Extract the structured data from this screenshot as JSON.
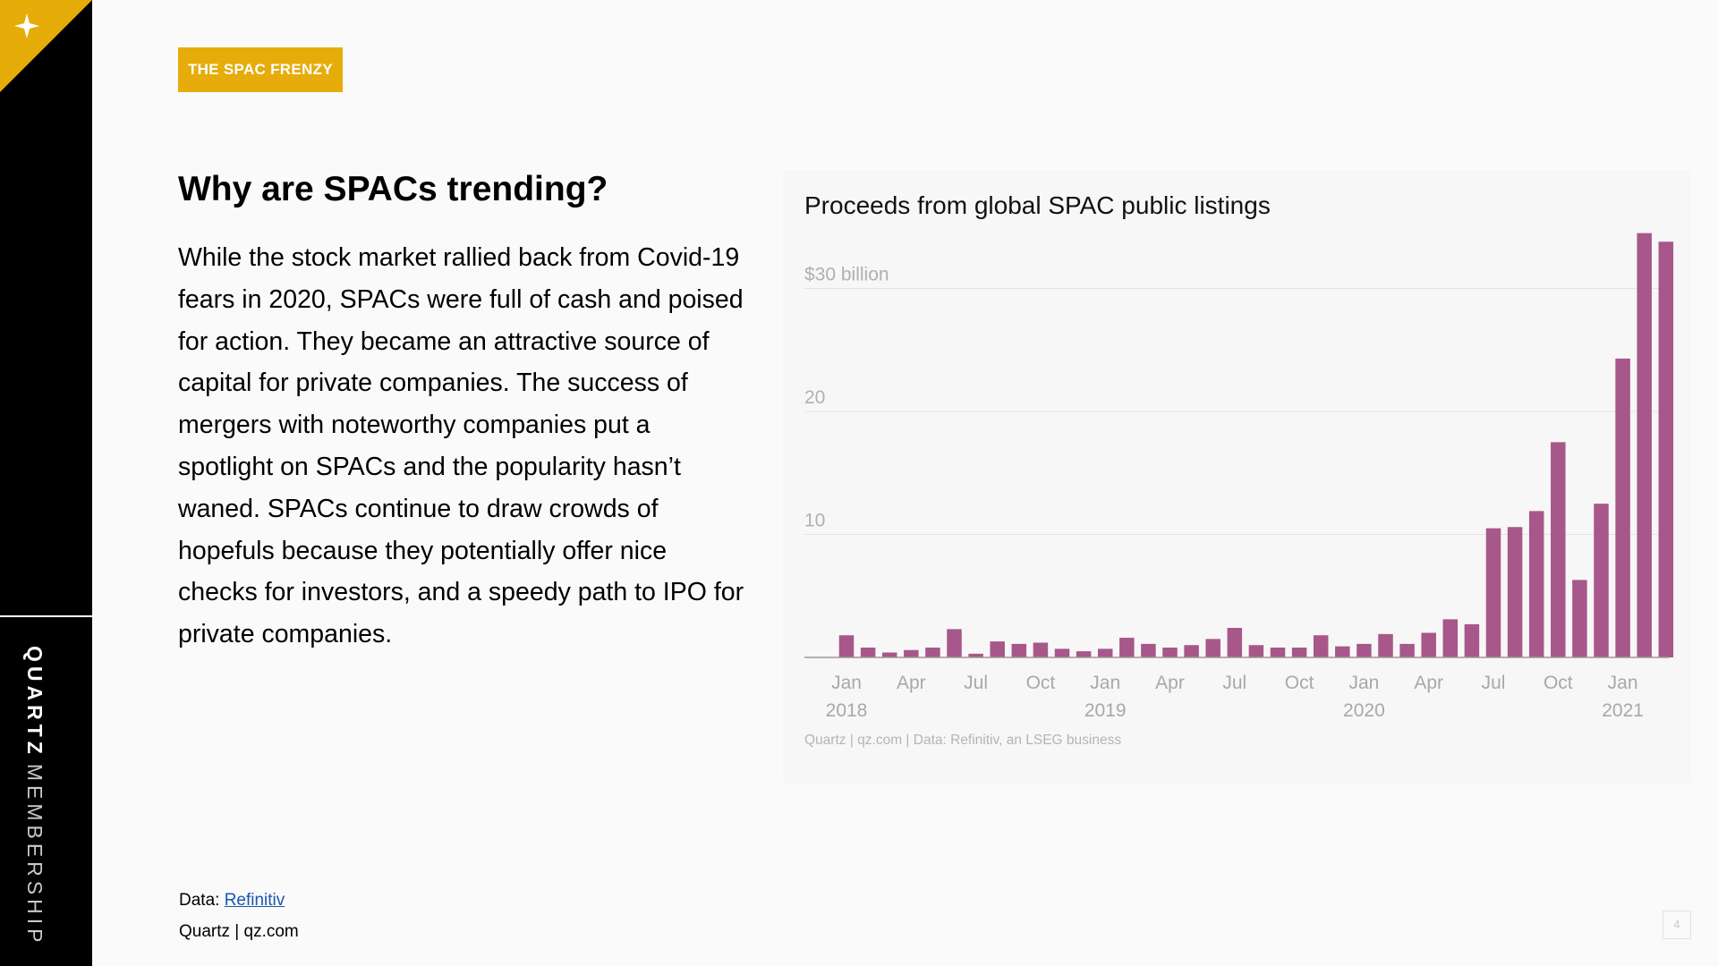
{
  "sidebar": {
    "brand_bold": "QUARTZ",
    "brand_light": "MEMBERSHIP"
  },
  "tag": "THE SPAC FRENZY",
  "headline": "Why are SPACs trending?",
  "body": "While the stock market rallied back from Covid-19 fears in 2020, SPACs were full of cash and poised for action. They became an attractive source of capital for private companies. The success of mergers with noteworthy companies put a spotlight on SPACs and the popularity hasn’t waned. SPACs continue to draw crowds of hopefuls because they potentially offer nice checks for investors, and a speedy path to IPO for private companies.",
  "footer": {
    "source_prefix": "Data: ",
    "source_link": "Refinitiv",
    "credit": "Quartz | qz.com"
  },
  "page_number": "4",
  "colors": {
    "accent": "#e6ac0a",
    "bar": "#a8578a",
    "sidebar": "#000000"
  },
  "chart_data": {
    "type": "bar",
    "title": "Proceeds from global SPAC public listings",
    "source": "Quartz | qz.com | Data: Refinitiv, an LSEG business",
    "ylabel": "",
    "ylim": [
      0,
      30
    ],
    "yticks": [
      {
        "value": 10,
        "label": "10"
      },
      {
        "value": 20,
        "label": "20"
      },
      {
        "value": 30,
        "label": "$30 billion"
      }
    ],
    "x": [
      "2018-01",
      "2018-02",
      "2018-03",
      "2018-04",
      "2018-05",
      "2018-06",
      "2018-07",
      "2018-08",
      "2018-09",
      "2018-10",
      "2018-11",
      "2018-12",
      "2019-01",
      "2019-02",
      "2019-03",
      "2019-04",
      "2019-05",
      "2019-06",
      "2019-07",
      "2019-08",
      "2019-09",
      "2019-10",
      "2019-11",
      "2019-12",
      "2020-01",
      "2020-02",
      "2020-03",
      "2020-04",
      "2020-05",
      "2020-06",
      "2020-07",
      "2020-08",
      "2020-09",
      "2020-10",
      "2020-11",
      "2020-12",
      "2021-01",
      "2021-02",
      "2021-03"
    ],
    "values": [
      1.8,
      0.8,
      0.4,
      0.6,
      0.8,
      2.3,
      0.3,
      1.3,
      1.1,
      1.2,
      0.7,
      0.5,
      0.7,
      1.6,
      1.1,
      0.8,
      1.0,
      1.5,
      2.4,
      1.0,
      0.8,
      0.8,
      1.8,
      0.9,
      1.1,
      1.9,
      1.1,
      2.0,
      3.1,
      2.7,
      10.5,
      10.6,
      11.9,
      17.5,
      6.3,
      12.5,
      24.3,
      34.5,
      33.8
    ],
    "xtick_labels": [
      {
        "index": 0,
        "month": "Jan",
        "year": "2018"
      },
      {
        "index": 3,
        "month": "Apr",
        "year": ""
      },
      {
        "index": 6,
        "month": "Jul",
        "year": ""
      },
      {
        "index": 9,
        "month": "Oct",
        "year": ""
      },
      {
        "index": 12,
        "month": "Jan",
        "year": "2019"
      },
      {
        "index": 15,
        "month": "Apr",
        "year": ""
      },
      {
        "index": 18,
        "month": "Jul",
        "year": ""
      },
      {
        "index": 21,
        "month": "Oct",
        "year": ""
      },
      {
        "index": 24,
        "month": "Jan",
        "year": "2020"
      },
      {
        "index": 27,
        "month": "Apr",
        "year": ""
      },
      {
        "index": 30,
        "month": "Jul",
        "year": ""
      },
      {
        "index": 33,
        "month": "Oct",
        "year": ""
      },
      {
        "index": 36,
        "month": "Jan",
        "year": "2021"
      }
    ],
    "grid": true,
    "legend": "none"
  }
}
